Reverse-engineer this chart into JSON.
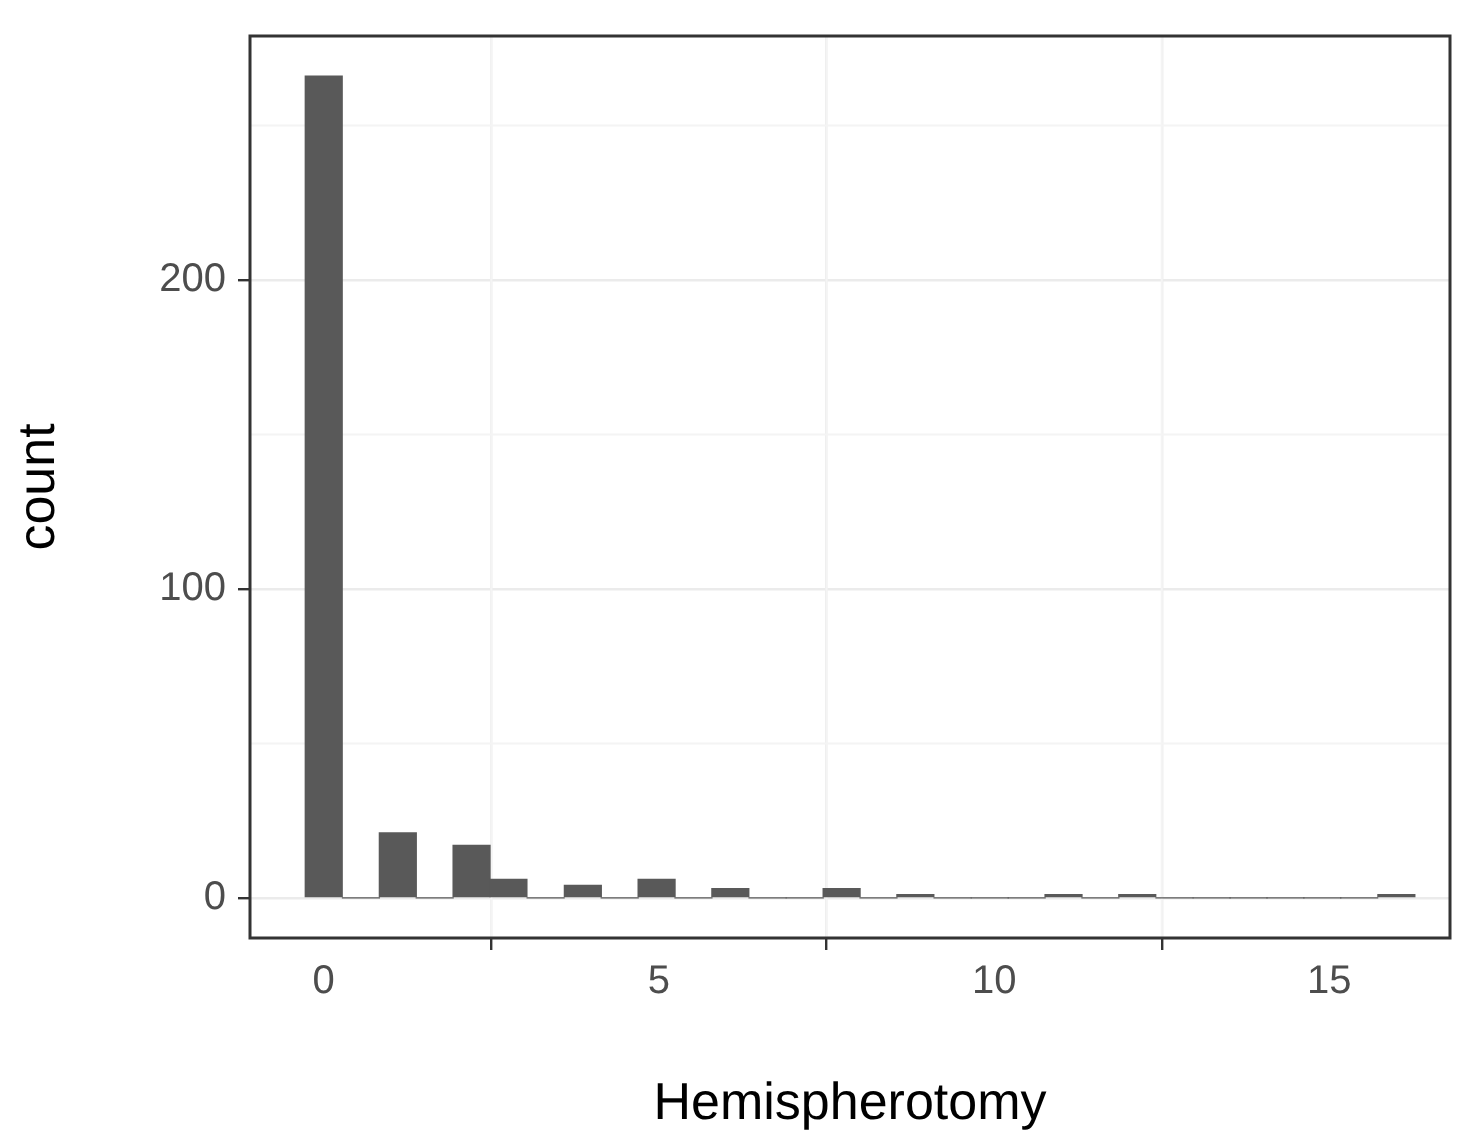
{
  "chart_data": {
    "type": "histogram",
    "xlabel": "Hemispherotomy",
    "ylabel": "count",
    "bins": [
      -0.28,
      0.28,
      0.83,
      1.38,
      1.93,
      2.48,
      3.03,
      3.59,
      4.14,
      4.69,
      5.24,
      5.79,
      6.34,
      6.9,
      7.45,
      8,
      8.55,
      9.1,
      9.66,
      10.21,
      10.76,
      11.31,
      11.86,
      12.41,
      12.97,
      13.52,
      14.07,
      14.62,
      15.17,
      15.72,
      16.28
    ],
    "values": [
      266,
      0,
      21,
      0,
      17,
      6,
      0,
      4,
      0,
      6,
      0,
      3,
      0,
      0,
      3,
      0,
      1,
      0,
      0,
      0,
      1,
      0,
      1,
      0,
      0,
      0,
      0,
      0,
      0,
      1
    ],
    "color": "#595959",
    "xlim": [
      -1.1,
      16.8
    ],
    "xticks": [
      0,
      5,
      10,
      15
    ],
    "ylim": [
      -13,
      279
    ],
    "yticks": [
      0,
      100,
      200
    ],
    "grid": true,
    "legend": false
  }
}
